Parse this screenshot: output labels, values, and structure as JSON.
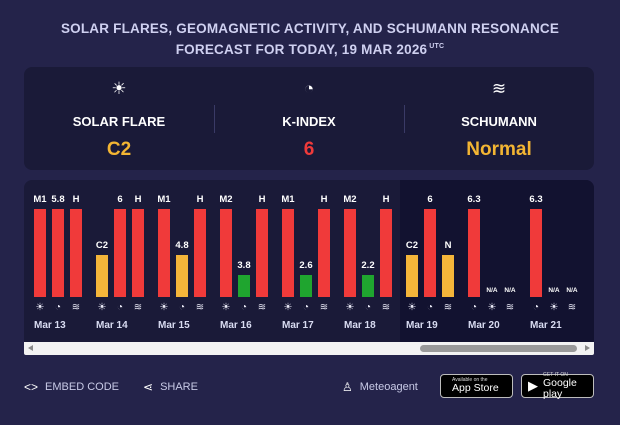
{
  "header": {
    "line1": "SOLAR FLARES, GEOMAGNETIC ACTIVITY, AND SCHUMANN RESONANCE",
    "line2": "FORECAST FOR TODAY, 19 MAR 2026",
    "tz": "UTC"
  },
  "summary": [
    {
      "icon": "sun-icon",
      "glyph": "☀",
      "label": "SOLAR FLARE",
      "value": "C2",
      "color": "#f3b533"
    },
    {
      "icon": "magnet-icon",
      "glyph": "◔",
      "label": "K-INDEX",
      "value": "6",
      "color": "#ef3a3a"
    },
    {
      "icon": "waves-icon",
      "glyph": "≋",
      "label": "SCHUMANN",
      "value": "Normal",
      "color": "#f3b533"
    }
  ],
  "chart_data": {
    "type": "bar",
    "series": [
      "Solar flare",
      "K-index",
      "Schumann"
    ],
    "days": [
      {
        "day": "Mar 13",
        "bars": [
          {
            "label": "M1",
            "level": 1.0,
            "color": "#f03a3a"
          },
          {
            "label": "5.8",
            "level": 1.0,
            "color": "#f03a3a"
          },
          {
            "label": "H",
            "level": 1.0,
            "color": "#f03a3a"
          }
        ]
      },
      {
        "day": "Mar 14",
        "bars": [
          {
            "label": "C2",
            "level": 0.48,
            "color": "#f4b53a"
          },
          {
            "label": "6",
            "level": 1.0,
            "color": "#f03a3a"
          },
          {
            "label": "H",
            "level": 1.0,
            "color": "#f03a3a"
          }
        ]
      },
      {
        "day": "Mar 15",
        "bars": [
          {
            "label": "M1",
            "level": 1.0,
            "color": "#f03a3a"
          },
          {
            "label": "4.8",
            "level": 0.48,
            "color": "#f4b53a"
          },
          {
            "label": "H",
            "level": 1.0,
            "color": "#f03a3a"
          }
        ]
      },
      {
        "day": "Mar 16",
        "bars": [
          {
            "label": "M2",
            "level": 1.0,
            "color": "#f03a3a"
          },
          {
            "label": "3.8",
            "level": 0.25,
            "color": "#1fa52f"
          },
          {
            "label": "H",
            "level": 1.0,
            "color": "#f03a3a"
          }
        ]
      },
      {
        "day": "Mar 17",
        "bars": [
          {
            "label": "M1",
            "level": 1.0,
            "color": "#f03a3a"
          },
          {
            "label": "2.6",
            "level": 0.25,
            "color": "#1fa52f"
          },
          {
            "label": "H",
            "level": 1.0,
            "color": "#f03a3a"
          }
        ]
      },
      {
        "day": "Mar 18",
        "bars": [
          {
            "label": "M2",
            "level": 1.0,
            "color": "#f03a3a"
          },
          {
            "label": "2.2",
            "level": 0.25,
            "color": "#1fa52f"
          },
          {
            "label": "H",
            "level": 1.0,
            "color": "#f03a3a"
          }
        ]
      },
      {
        "day": "Mar 19",
        "bars": [
          {
            "label": "C2",
            "level": 0.48,
            "color": "#f4b53a"
          },
          {
            "label": "6",
            "level": 1.0,
            "color": "#f03a3a"
          },
          {
            "label": "N",
            "level": 0.48,
            "color": "#f4b53a"
          }
        ]
      },
      {
        "day": "Mar 20",
        "bars": [
          {
            "label": "6.3",
            "level": 1.0,
            "color": "#f03a3a"
          },
          {
            "label": "N/A",
            "level": 0,
            "color": "#f03a3a"
          },
          {
            "label": "N/A",
            "level": 0,
            "color": "#f03a3a"
          }
        ]
      },
      {
        "day": "Mar 21",
        "bars": [
          {
            "label": "6.3",
            "level": 1.0,
            "color": "#f03a3a"
          },
          {
            "label": "N/A",
            "level": 0,
            "color": "#f03a3a"
          },
          {
            "label": "N/A",
            "level": 0,
            "color": "#f03a3a"
          }
        ]
      }
    ],
    "icons_day": [
      {
        "icon": "sun-icon",
        "glyph": "☀"
      },
      {
        "icon": "magnet-icon",
        "glyph": "◔"
      },
      {
        "icon": "waves-icon",
        "glyph": "≋"
      }
    ],
    "icons_forecast": [
      {
        "icon": "magnet-icon",
        "glyph": "◔"
      },
      {
        "icon": "sun-icon",
        "glyph": "☀"
      },
      {
        "icon": "waves-icon",
        "glyph": "≋"
      }
    ]
  },
  "footer": {
    "embed_label": "EMBED CODE",
    "share_label": "SHARE",
    "meteoagent_label": "Meteoagent",
    "appstore_small": "Available on the",
    "appstore_big": "App Store",
    "googleplay_small": "GET IT ON",
    "googleplay_big": "Google play"
  }
}
